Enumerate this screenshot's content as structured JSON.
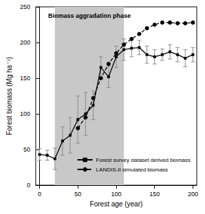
{
  "chart_data": {
    "type": "line",
    "x_label": "Forest age (year)",
    "y_label": "Forest biomass (Mg ha⁻¹)",
    "xlim": [
      -5,
      205
    ],
    "xticks": [
      0,
      50,
      100,
      150,
      200
    ],
    "ylim": [
      0,
      250
    ],
    "yticks": [
      0,
      50,
      100,
      150,
      200,
      250
    ],
    "grid": false,
    "legend": "lower right",
    "aggradation_phase": {
      "x": [
        20,
        110
      ],
      "label": "Biomass aggradation phase"
    },
    "series": [
      {
        "name": "Forest survey dataset derived biomass",
        "color": "#000000",
        "line_style": "solid",
        "marker": "square",
        "x": [
          0,
          10,
          20,
          30,
          40,
          50,
          60,
          70,
          80,
          90,
          100,
          110,
          120,
          130,
          140,
          150,
          160,
          170,
          180,
          190,
          200
        ],
        "values": [
          43,
          42,
          37,
          62,
          70,
          92,
          100,
          112,
          165,
          152,
          180,
          190,
          192,
          193,
          183,
          180,
          183,
          187,
          183,
          178,
          183
        ],
        "errors": [
          8,
          7,
          15,
          20,
          25,
          33,
          30,
          20,
          15,
          15,
          15,
          15,
          12,
          10,
          12,
          10,
          8,
          10,
          10,
          12,
          10
        ]
      },
      {
        "name": "LANDIS-II simulated biomass",
        "color": "#000000",
        "line_style": "dashed",
        "marker": "circle",
        "x": [
          50,
          60,
          70,
          80,
          90,
          100,
          110,
          120,
          130,
          140,
          150,
          160,
          170,
          180,
          190,
          200
        ],
        "values": [
          80,
          95,
          122,
          150,
          170,
          185,
          197,
          205,
          212,
          220,
          225,
          228,
          228,
          227,
          227,
          228
        ]
      }
    ]
  }
}
